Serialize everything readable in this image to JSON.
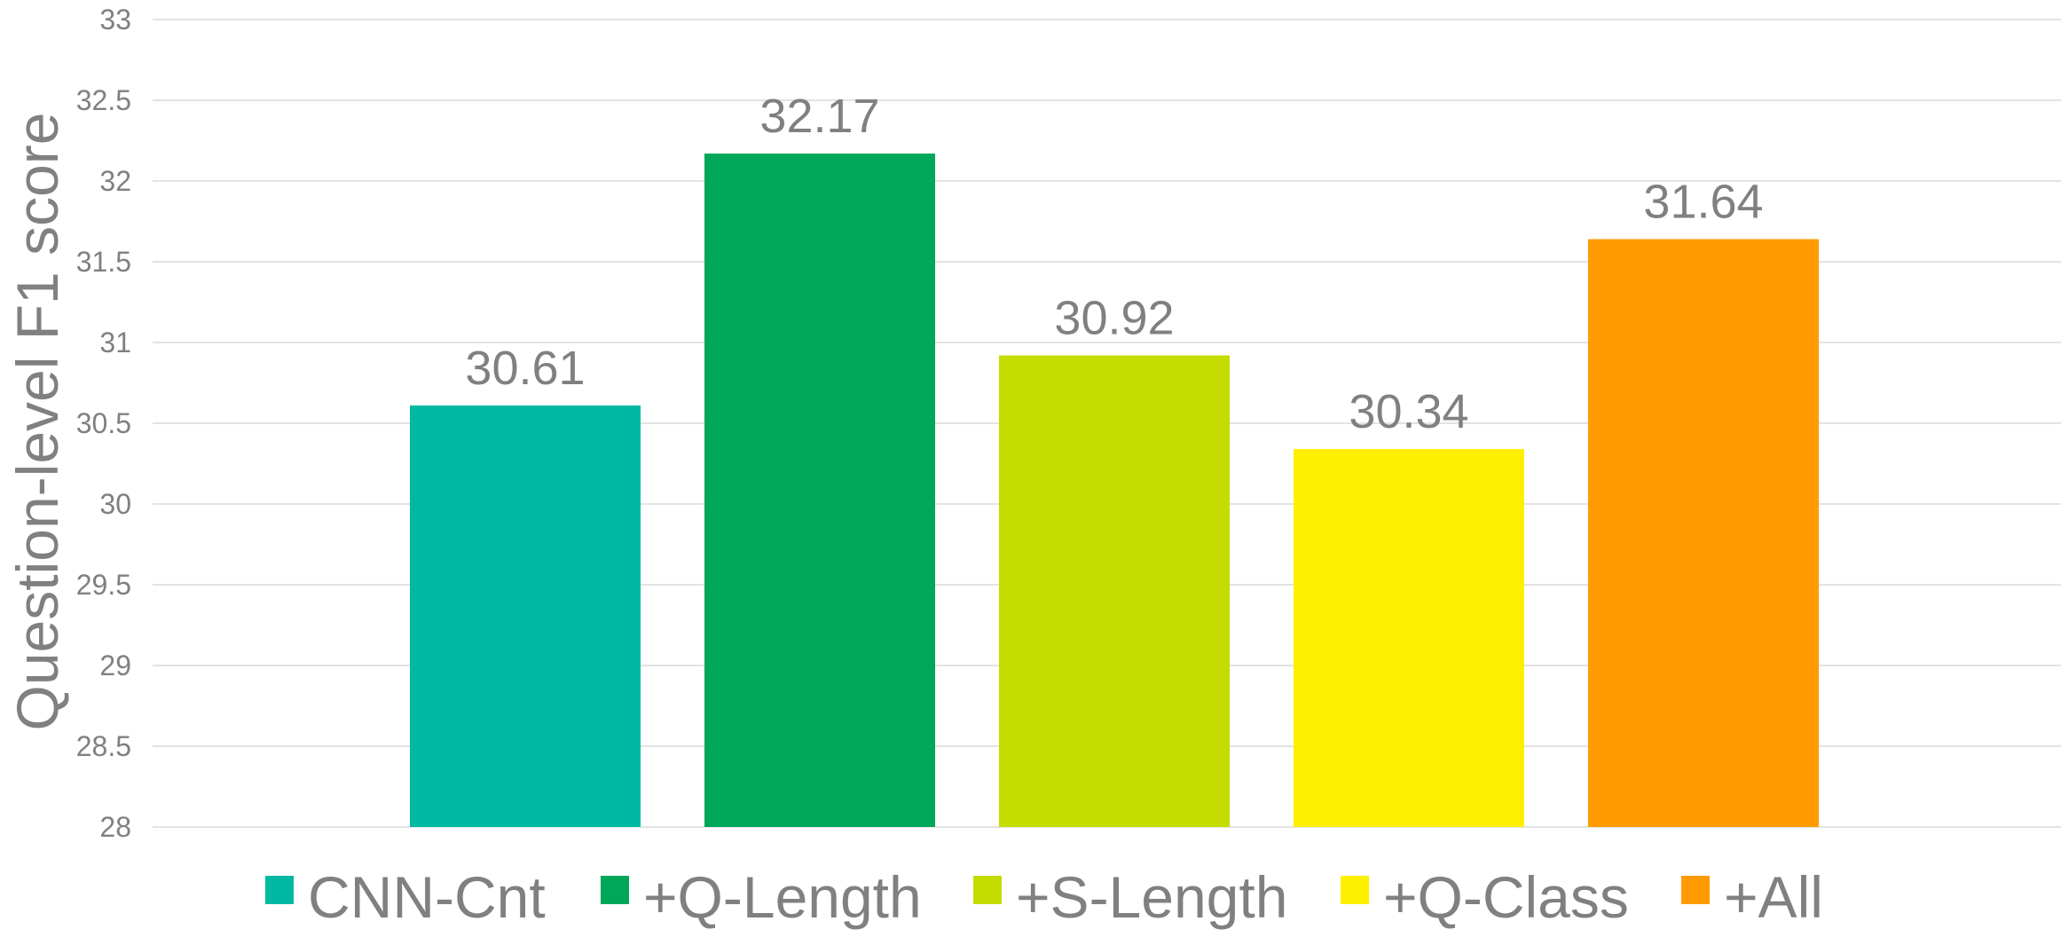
{
  "chart_data": {
    "type": "bar",
    "title": "",
    "xlabel": "",
    "ylabel": "Question-level F1 score",
    "ylim": [
      28,
      33
    ],
    "yticks": [
      28,
      28.5,
      29,
      29.5,
      30,
      30.5,
      31,
      31.5,
      32,
      32.5,
      33
    ],
    "grid": true,
    "legend_position": "bottom",
    "series": [
      {
        "name": "CNN-Cnt",
        "value": 30.61,
        "label": "30.61",
        "color": "#00B9A2"
      },
      {
        "name": "+Q-Length",
        "value": 32.17,
        "label": "32.17",
        "color": "#00A759"
      },
      {
        "name": "+S-Length",
        "value": 30.92,
        "label": "30.92",
        "color": "#C5DC00"
      },
      {
        "name": "+Q-Class",
        "value": 30.34,
        "label": "30.34",
        "color": "#FFEF00"
      },
      {
        "name": "+All",
        "value": 31.64,
        "label": "31.64",
        "color": "#FF9B00"
      }
    ]
  }
}
